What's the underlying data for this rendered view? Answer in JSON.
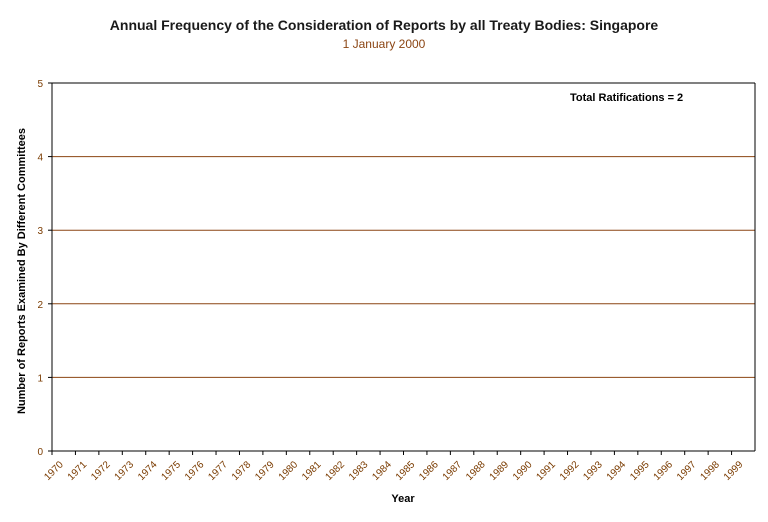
{
  "colors": {
    "gridline": "#8b4513",
    "axis": "#000000",
    "tick_text": "#7a3b00",
    "subtitle": "#8b4513"
  },
  "chart_data": {
    "type": "bar",
    "title": "Annual Frequency of the Consideration of Reports by all Treaty Bodies: Singapore",
    "subtitle": "1 January 2000",
    "xlabel": "Year",
    "ylabel": "Number of Reports Examined By Different Committees",
    "annotation": "Total Ratifications = 2",
    "ylim": [
      0,
      5
    ],
    "yticks": [
      "0",
      "1",
      "2",
      "3",
      "4",
      "5"
    ],
    "grid": true,
    "categories": [
      "1970",
      "1971",
      "1972",
      "1973",
      "1974",
      "1975",
      "1976",
      "1977",
      "1978",
      "1979",
      "1980",
      "1981",
      "1982",
      "1983",
      "1984",
      "1985",
      "1986",
      "1987",
      "1988",
      "1989",
      "1990",
      "1991",
      "1992",
      "1993",
      "1994",
      "1995",
      "1996",
      "1997",
      "1998",
      "1999"
    ],
    "values": [
      0,
      0,
      0,
      0,
      0,
      0,
      0,
      0,
      0,
      0,
      0,
      0,
      0,
      0,
      0,
      0,
      0,
      0,
      0,
      0,
      0,
      0,
      0,
      0,
      0,
      0,
      0,
      0,
      0,
      0
    ]
  }
}
